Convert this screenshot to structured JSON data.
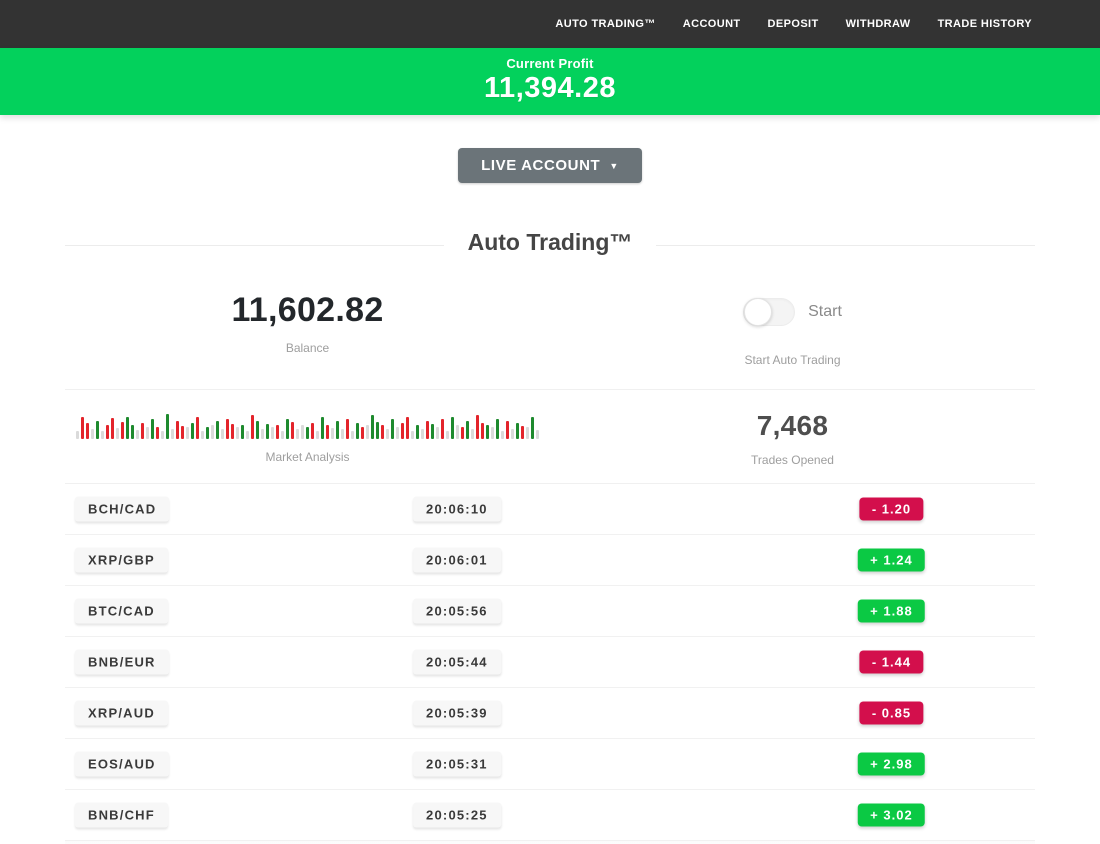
{
  "colors": {
    "nav_bg": "#333333",
    "banner_green": "#03d15c",
    "win_green": "#0bc944",
    "loss_red": "#d30f4c",
    "bar_red": "#e3242b",
    "bar_green": "#1e8a2e",
    "bar_gray": "#dadada"
  },
  "nav": {
    "items": [
      "AUTO TRADING™",
      "ACCOUNT",
      "DEPOSIT",
      "WITHDRAW",
      "TRADE HISTORY"
    ]
  },
  "profit_banner": {
    "label": "Current Profit",
    "value": "11,394.28"
  },
  "account_selector": {
    "label": "LIVE ACCOUNT",
    "caret": "▼"
  },
  "section": {
    "title": "Auto Trading™"
  },
  "stats": {
    "balance": {
      "value": "11,602.82",
      "label": "Balance"
    },
    "auto_trading": {
      "toggle_label": "Start",
      "toggle_state": "off",
      "label": "Start Auto Trading"
    },
    "market": {
      "label": "Market Analysis"
    },
    "trades": {
      "value": "7,468",
      "label": "Trades Opened"
    }
  },
  "chart_data": {
    "type": "bar",
    "title": "Market Analysis",
    "note": "decorative candlestick-style sparkline; e=gray r=red g=green, number=bar height px",
    "bars": [
      "e8",
      "r22",
      "r16",
      "e10",
      "g18",
      "e8",
      "r14",
      "r21",
      "e11",
      "r17",
      "g22",
      "g14",
      "e9",
      "r16",
      "e12",
      "g20",
      "r12",
      "e8",
      "g25",
      "e10",
      "r18",
      "r13",
      "e12",
      "g16",
      "r22",
      "e8",
      "g12",
      "e14",
      "g18",
      "e10",
      "r20",
      "r15",
      "e12",
      "g14",
      "e8",
      "r24",
      "g18",
      "e10",
      "g15",
      "e12",
      "r14",
      "e8",
      "g20",
      "r17",
      "e10",
      "e14",
      "g12",
      "r16",
      "e8",
      "g22",
      "r14",
      "e11",
      "g18",
      "e10",
      "r20",
      "e8",
      "g16",
      "r12",
      "e14",
      "g24",
      "g17",
      "r14",
      "e10",
      "g20",
      "e12",
      "r16",
      "r22",
      "e8",
      "g14",
      "e10",
      "r18",
      "g15",
      "e12",
      "r20",
      "e8",
      "g22",
      "e14",
      "r12",
      "g18",
      "e10",
      "r24",
      "r16",
      "g14",
      "e12",
      "g20",
      "e8",
      "r18",
      "e10",
      "g16",
      "r13",
      "e12",
      "g22",
      "e9"
    ]
  },
  "trades_table": {
    "rows": [
      {
        "pair": "BCH/CAD",
        "time": "20:06:10",
        "result": "-  1.20",
        "direction": "loss"
      },
      {
        "pair": "XRP/GBP",
        "time": "20:06:01",
        "result": "+  1.24",
        "direction": "win"
      },
      {
        "pair": "BTC/CAD",
        "time": "20:05:56",
        "result": "+  1.88",
        "direction": "win"
      },
      {
        "pair": "BNB/EUR",
        "time": "20:05:44",
        "result": "-  1.44",
        "direction": "loss"
      },
      {
        "pair": "XRP/AUD",
        "time": "20:05:39",
        "result": "-  0.85",
        "direction": "loss"
      },
      {
        "pair": "EOS/AUD",
        "time": "20:05:31",
        "result": "+  2.98",
        "direction": "win"
      },
      {
        "pair": "BNB/CHF",
        "time": "20:05:25",
        "result": "+  3.02",
        "direction": "win"
      }
    ]
  }
}
